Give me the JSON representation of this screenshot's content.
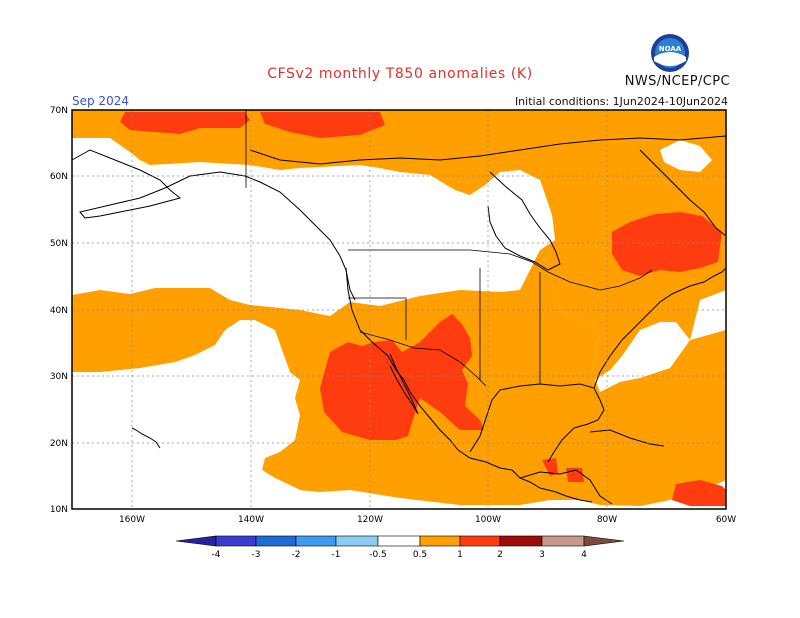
{
  "header": {
    "title": "CFSv2 monthly T850 anomalies (K)",
    "month_label": "Sep 2024",
    "initial_conditions": "Initial conditions: 1Jun2024-10Jun2024",
    "agency": "NWS/NCEP/CPC",
    "logo_text": "NOAA"
  },
  "map": {
    "lat_range": [
      10,
      70
    ],
    "lon_range": [
      -170,
      -60
    ],
    "lat_ticks": [
      "70N",
      "60N",
      "50N",
      "40N",
      "30N",
      "20N",
      "10N"
    ],
    "lon_ticks": [
      "160W",
      "140W",
      "120W",
      "100W",
      "80W",
      "60W"
    ],
    "grid": true
  },
  "legend": {
    "labels": [
      "-4",
      "-3",
      "-2",
      "-1",
      "-0.5",
      "0.5",
      "1",
      "2",
      "3",
      "4"
    ],
    "colors": [
      "#2a1f9e",
      "#3b3bd0",
      "#1e6ad8",
      "#3d9cf0",
      "#8ccaf2",
      "#ffffff",
      "#ffa000",
      "#ff3c10",
      "#a00a0a",
      "#c8988c",
      "#7a4a3c"
    ]
  },
  "colors": {
    "anomaly_0_5_to_1": "#ffa000",
    "anomaly_1_to_2": "#ff3c10",
    "anomaly_2_to_3": "#a00a0a",
    "coast": "#000000",
    "grid": "#888888"
  }
}
